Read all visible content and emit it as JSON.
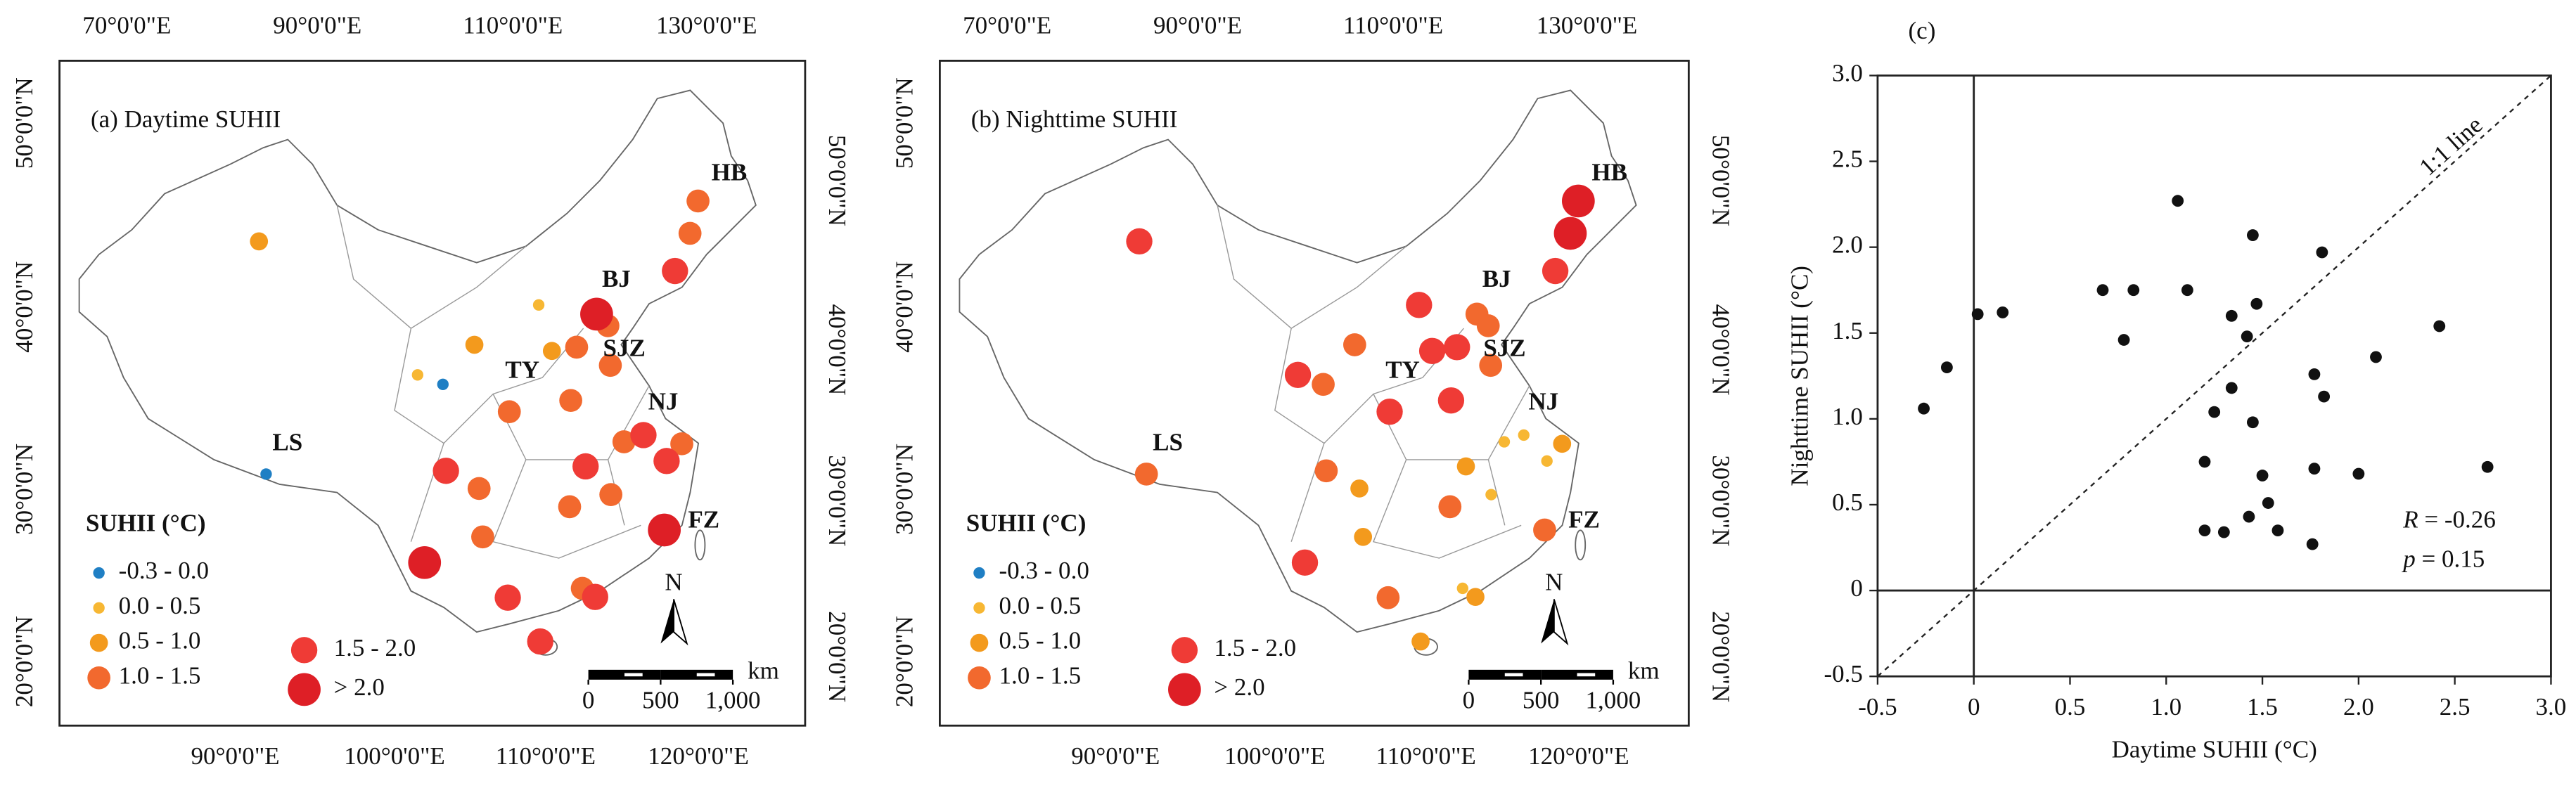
{
  "chart_data": [
    {
      "type": "map",
      "title": "(a) Daytime SUHII",
      "legend_title": "SUHII (°C)",
      "top_labels": [
        "70°0'0\"E",
        "90°0'0\"E",
        "110°0'0\"E",
        "130°0'0\"E"
      ],
      "bottom_labels": [
        "90°0'0\"E",
        "100°0'0\"E",
        "110°0'0\"E",
        "120°0'0\"E"
      ],
      "left_labels": [
        "50°0'0\"N",
        "40°0'0\"N",
        "30°0'0\"N",
        "20°0'0\"N"
      ],
      "right_labels": [
        "50°0'0\"N",
        "40°0'0\"N",
        "30°0'0\"N",
        "20°0'0\"N"
      ],
      "series": [
        {
          "name": "-0.3 - 0.0",
          "color": "#1f7fc4",
          "lon": [
            91.1,
            103.8
          ],
          "lat": [
            29.65,
            36.05
          ]
        },
        {
          "name": "0.0 - 0.5",
          "color": "#f7b733",
          "lon": [
            101.8,
            111.7
          ],
          "lat": [
            36.6,
            40.8
          ]
        },
        {
          "name": "0.5 - 1.0",
          "color": "#f39a1d",
          "lon": [
            87.6,
            106.3,
            112.5
          ],
          "lat": [
            43.8,
            38.5,
            37.9
          ]
        },
        {
          "name": "1.0 - 1.5",
          "color": "#f2692e",
          "lon": [
            117.2,
            114.5,
            117.0,
            113.65,
            108.9,
            117.3,
            121.5,
            106.5,
            115.9,
            112.9,
            106.7,
            113.3,
            126.6,
            125.3
          ],
          "lat": [
            39.1,
            38.0,
            36.65,
            34.75,
            34.3,
            31.85,
            31.2,
            29.6,
            28.7,
            28.2,
            26.6,
            23.1,
            45.75,
            43.9
          ]
        },
        {
          "name": "1.5 - 2.0",
          "color": "#ef3b36",
          "lon": [
            118.8,
            120.2,
            114.3,
            104.1,
            108.3,
            114.1,
            110.3,
            123.4
          ],
          "lat": [
            32.1,
            30.3,
            30.6,
            30.7,
            22.8,
            22.5,
            20.0,
            41.8
          ]
        },
        {
          "name": "> 2.0",
          "color": "#de1f26",
          "lon": [
            116.4,
            119.3,
            102.7
          ],
          "lat": [
            39.9,
            26.1,
            25.0
          ]
        }
      ],
      "city_labels": [
        {
          "text": "HB",
          "lon": 126.6,
          "lat": 45.75
        },
        {
          "text": "BJ",
          "lon": 116.4,
          "lat": 39.9
        },
        {
          "text": "SJZ",
          "lon": 114.5,
          "lat": 38.0
        },
        {
          "text": "TY",
          "lon": 112.5,
          "lat": 37.9
        },
        {
          "text": "NJ",
          "lon": 118.8,
          "lat": 32.1
        },
        {
          "text": "LS",
          "lon": 91.1,
          "lat": 29.65
        },
        {
          "text": "FZ",
          "lon": 119.3,
          "lat": 26.1
        }
      ],
      "scale_unit": "km",
      "scale_ticks": [
        0,
        500,
        {
          "value": 1000,
          "label": "1,000"
        }
      ],
      "north_label": "N"
    },
    {
      "type": "map",
      "title": "(b) Nighttime SUHII",
      "legend_title": "SUHII (°C)",
      "top_labels": [
        "70°0'0\"E",
        "90°0'0\"E",
        "110°0'0\"E",
        "130°0'0\"E"
      ],
      "bottom_labels": [
        "90°0'0\"E",
        "100°0'0\"E",
        "110°0'0\"E",
        "120°0'0\"E"
      ],
      "left_labels": [
        "50°0'0\"N",
        "40°0'0\"N",
        "30°0'0\"N",
        "20°0'0\"N"
      ],
      "right_labels": [
        "50°0'0\"N",
        "40°0'0\"N",
        "30°0'0\"N",
        "20°0'0\"N"
      ],
      "series": [
        {
          "name": "-0.3 - 0.0",
          "color": "#1f7fc4",
          "lon": [],
          "lat": []
        },
        {
          "name": "0.0 - 0.5",
          "color": "#f7b733",
          "lon": [
            118.8,
            117.3,
            120.2,
            115.9,
            113.3
          ],
          "lat": [
            32.1,
            31.85,
            30.3,
            28.7,
            23.1
          ]
        },
        {
          "name": "0.5 - 1.0",
          "color": "#f39a1d",
          "lon": [
            121.5,
            114.3,
            106.5,
            106.7,
            114.1,
            110.3
          ],
          "lat": [
            31.2,
            30.6,
            29.6,
            26.6,
            22.5,
            20.0
          ]
        },
        {
          "name": "1.0 - 1.5",
          "color": "#f2692e",
          "lon": [
            91.1,
            103.8,
            106.3,
            116.4,
            117.2,
            117.0,
            104.1,
            112.9,
            119.3,
            108.3
          ],
          "lat": [
            29.65,
            36.05,
            38.5,
            39.9,
            39.1,
            36.65,
            30.7,
            28.2,
            26.1,
            22.8
          ]
        },
        {
          "name": "1.5 - 2.0",
          "color": "#ef3b36",
          "lon": [
            87.6,
            101.8,
            111.7,
            112.5,
            114.5,
            113.65,
            108.9,
            102.7,
            123.4
          ],
          "lat": [
            43.8,
            36.6,
            40.8,
            37.9,
            38.0,
            34.75,
            34.3,
            25.0,
            41.8
          ]
        },
        {
          "name": "> 2.0",
          "color": "#de1f26",
          "lon": [
            126.6,
            125.3
          ],
          "lat": [
            45.75,
            43.9
          ]
        }
      ],
      "city_labels": [
        {
          "text": "HB",
          "lon": 126.6,
          "lat": 45.75
        },
        {
          "text": "BJ",
          "lon": 116.4,
          "lat": 39.9
        },
        {
          "text": "SJZ",
          "lon": 114.5,
          "lat": 38.0
        },
        {
          "text": "TY",
          "lon": 112.5,
          "lat": 37.9
        },
        {
          "text": "NJ",
          "lon": 118.8,
          "lat": 32.1
        },
        {
          "text": "LS",
          "lon": 91.1,
          "lat": 29.65
        },
        {
          "text": "FZ",
          "lon": 119.3,
          "lat": 26.1
        }
      ],
      "scale_unit": "km",
      "scale_ticks": [
        0,
        500,
        {
          "value": 1000,
          "label": "1,000"
        }
      ],
      "north_label": "N"
    },
    {
      "type": "scatter",
      "title": "(c)",
      "x_label": "Daytime SUHII (°C)",
      "y_label": "Nighttime SUHII (°C)",
      "color": "#111",
      "x": [
        -0.26,
        -0.14,
        0.02,
        0.15,
        0.67,
        0.83,
        0.78,
        1.06,
        1.11,
        1.34,
        1.42,
        1.45,
        1.47,
        1.81,
        1.34,
        1.25,
        1.2,
        1.45,
        1.5,
        1.53,
        1.43,
        1.58,
        1.2,
        1.3,
        1.76,
        1.77,
        1.82,
        1.77,
        2.0,
        2.09,
        2.42,
        2.67
      ],
      "values": [
        1.06,
        1.3,
        1.61,
        1.62,
        1.75,
        1.75,
        1.46,
        2.27,
        1.75,
        1.6,
        1.48,
        2.07,
        1.67,
        1.97,
        1.18,
        1.04,
        0.75,
        0.98,
        0.67,
        0.51,
        0.43,
        0.35,
        0.35,
        0.34,
        0.27,
        1.26,
        1.13,
        0.71,
        0.68,
        1.36,
        1.54,
        0.72
      ],
      "xlim": [
        -0.5,
        3.0
      ],
      "ylim": [
        -0.5,
        3.0
      ],
      "xticks": [
        -0.5,
        0,
        0.5,
        {
          "value": 1.0,
          "label": "1.0"
        },
        1.5,
        {
          "value": 2.0,
          "label": "2.0"
        },
        2.5,
        {
          "value": 3.0,
          "label": "3.0"
        }
      ],
      "yticks": [
        -0.5,
        0,
        0.5,
        {
          "value": 1.0,
          "label": "1.0"
        },
        1.5,
        {
          "value": 2.0,
          "label": "2.0"
        },
        2.5,
        {
          "value": 3.0,
          "label": "3.0"
        }
      ],
      "annotations": [
        "1:1 line",
        "R = -0.26",
        "p = 0.15"
      ]
    }
  ]
}
